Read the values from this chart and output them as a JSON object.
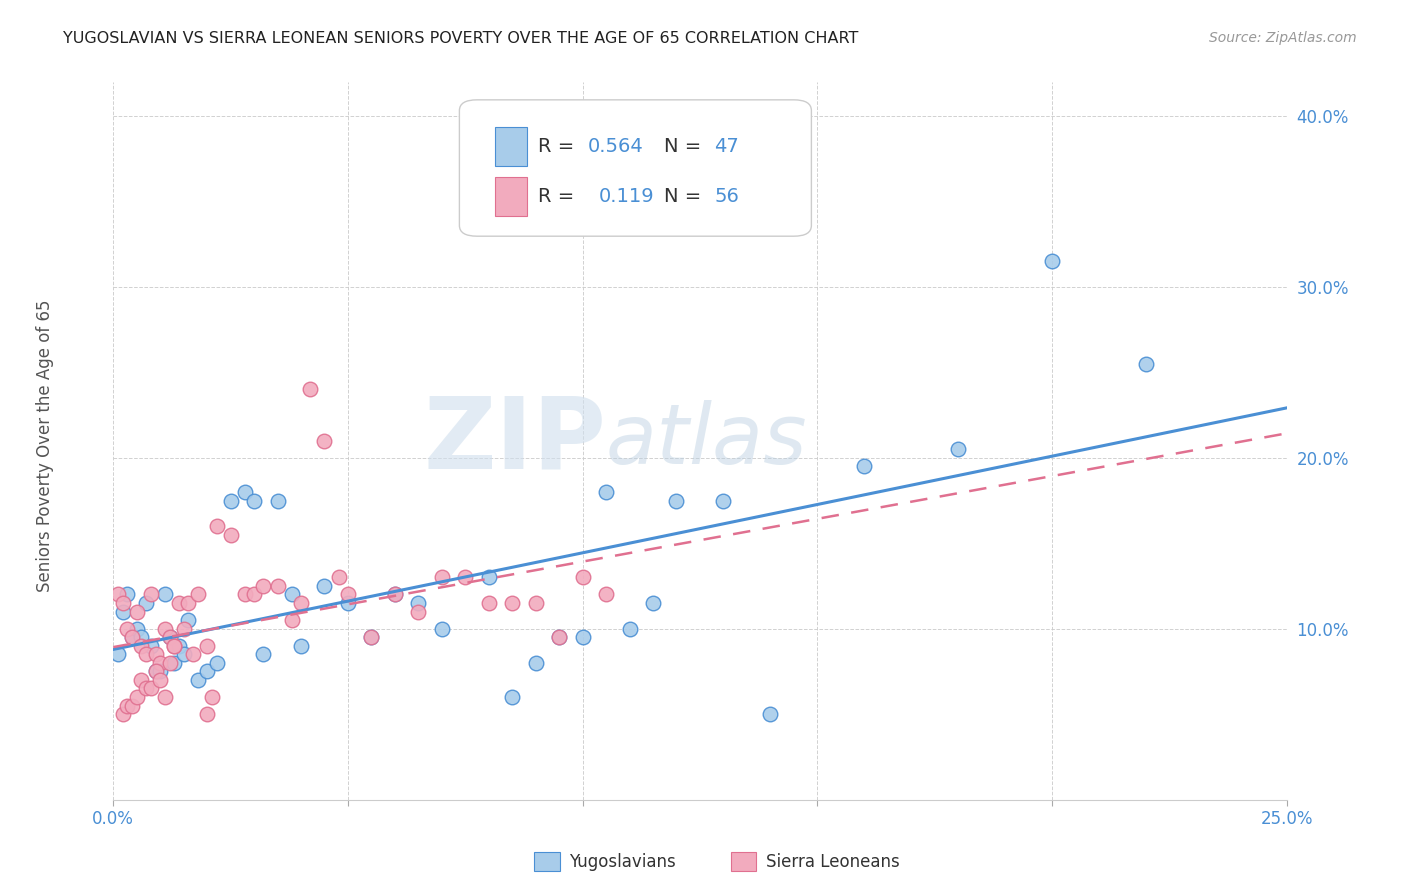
{
  "title": "YUGOSLAVIAN VS SIERRA LEONEAN SENIORS POVERTY OVER THE AGE OF 65 CORRELATION CHART",
  "source": "Source: ZipAtlas.com",
  "ylabel": "Seniors Poverty Over the Age of 65",
  "xlim": [
    0.0,
    0.25
  ],
  "ylim": [
    0.0,
    0.42
  ],
  "xticks": [
    0.0,
    0.05,
    0.1,
    0.15,
    0.2,
    0.25
  ],
  "yticks": [
    0.0,
    0.1,
    0.2,
    0.3,
    0.4
  ],
  "blue_color": "#A8CCEA",
  "pink_color": "#F2ABBE",
  "blue_line_color": "#4A8FD4",
  "pink_line_color": "#E07090",
  "watermark_zip": "ZIP",
  "watermark_atlas": "atlas",
  "legend_R1": "0.564",
  "legend_N1": "47",
  "legend_R2": "0.119",
  "legend_N2": "56",
  "blue_scatter_x": [
    0.001,
    0.002,
    0.003,
    0.004,
    0.005,
    0.006,
    0.007,
    0.008,
    0.009,
    0.01,
    0.011,
    0.012,
    0.013,
    0.014,
    0.015,
    0.016,
    0.018,
    0.02,
    0.022,
    0.025,
    0.028,
    0.03,
    0.032,
    0.035,
    0.038,
    0.04,
    0.045,
    0.05,
    0.055,
    0.06,
    0.065,
    0.07,
    0.08,
    0.085,
    0.09,
    0.095,
    0.1,
    0.105,
    0.11,
    0.115,
    0.12,
    0.13,
    0.14,
    0.16,
    0.18,
    0.22,
    0.2
  ],
  "blue_scatter_y": [
    0.085,
    0.11,
    0.12,
    0.095,
    0.1,
    0.095,
    0.115,
    0.09,
    0.075,
    0.075,
    0.12,
    0.095,
    0.08,
    0.09,
    0.085,
    0.105,
    0.07,
    0.075,
    0.08,
    0.175,
    0.18,
    0.175,
    0.085,
    0.175,
    0.12,
    0.09,
    0.125,
    0.115,
    0.095,
    0.12,
    0.115,
    0.1,
    0.13,
    0.06,
    0.08,
    0.095,
    0.095,
    0.18,
    0.1,
    0.115,
    0.175,
    0.175,
    0.05,
    0.195,
    0.205,
    0.255,
    0.315
  ],
  "pink_scatter_x": [
    0.001,
    0.002,
    0.003,
    0.004,
    0.005,
    0.006,
    0.007,
    0.008,
    0.009,
    0.01,
    0.011,
    0.012,
    0.013,
    0.014,
    0.015,
    0.016,
    0.017,
    0.018,
    0.02,
    0.021,
    0.022,
    0.025,
    0.028,
    0.03,
    0.032,
    0.035,
    0.038,
    0.04,
    0.042,
    0.045,
    0.048,
    0.05,
    0.055,
    0.06,
    0.065,
    0.07,
    0.075,
    0.08,
    0.085,
    0.09,
    0.095,
    0.1,
    0.105,
    0.002,
    0.003,
    0.004,
    0.005,
    0.006,
    0.007,
    0.008,
    0.009,
    0.01,
    0.011,
    0.012,
    0.013,
    0.02
  ],
  "pink_scatter_y": [
    0.12,
    0.115,
    0.1,
    0.095,
    0.11,
    0.09,
    0.085,
    0.12,
    0.085,
    0.08,
    0.1,
    0.095,
    0.09,
    0.115,
    0.1,
    0.115,
    0.085,
    0.12,
    0.09,
    0.06,
    0.16,
    0.155,
    0.12,
    0.12,
    0.125,
    0.125,
    0.105,
    0.115,
    0.24,
    0.21,
    0.13,
    0.12,
    0.095,
    0.12,
    0.11,
    0.13,
    0.13,
    0.115,
    0.115,
    0.115,
    0.095,
    0.13,
    0.12,
    0.05,
    0.055,
    0.055,
    0.06,
    0.07,
    0.065,
    0.065,
    0.075,
    0.07,
    0.06,
    0.08,
    0.09,
    0.05
  ]
}
